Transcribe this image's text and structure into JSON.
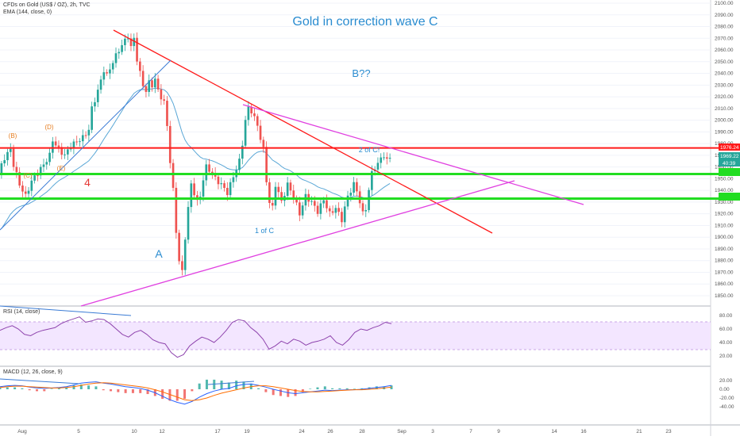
{
  "header": {
    "symbol_line": "CFDs on Gold (US$ / OZ), 2h, TVC",
    "ema_line": "EMA (144, close, 0)"
  },
  "annotations": {
    "title": "Gold in correction wave C",
    "b_label": "B??",
    "wave_4": "4",
    "wave_a": "A",
    "wave_1c": "1 of C",
    "wave_2c": "2 of C!",
    "b_small": "(B)",
    "d_small": "(D)",
    "c_small": "(C)",
    "e_small": "(E)"
  },
  "rsi": {
    "label": "RSI (14, close)"
  },
  "macd": {
    "label": "MACD (12, 26, close, 9)"
  },
  "price_badges": {
    "resistance": "1976.24",
    "last": "1969.22",
    "countdown": "40:39"
  },
  "colors": {
    "up": "#26a69a",
    "down": "#ef5350",
    "ema": "#5aa7d6",
    "red_line": "#ff1a1a",
    "green_line": "#22dd22",
    "magenta": "#e040e0",
    "blue_line": "#3a7bd5",
    "title": "#2a8cd0",
    "rsi_band": "#f3e6ff",
    "rsi_line": "#8e44ad"
  },
  "chart_data": {
    "type": "candlestick",
    "title": "Gold in correction wave C",
    "price_axis": {
      "ticks": [
        2100,
        2090,
        2080,
        2070,
        2060,
        2050,
        2040,
        2030,
        2020,
        2010,
        2000,
        1990,
        1980,
        1970,
        1960,
        1950,
        1940,
        1930,
        1920,
        1910,
        1900,
        1890,
        1880,
        1870,
        1860,
        1850
      ]
    },
    "x_axis": {
      "ticks": [
        "Aug",
        "5",
        "10",
        "12",
        "17",
        "19",
        "24",
        "26",
        "28",
        "Sep",
        "3",
        "7",
        "9",
        "14",
        "16",
        "21",
        "23"
      ]
    },
    "horizontal_levels": [
      {
        "name": "resistance",
        "value": 1976.24
      },
      {
        "name": "support_upper",
        "value": 1954
      },
      {
        "name": "support_lower",
        "value": 1933
      }
    ],
    "rsi_axis": {
      "ticks": [
        80,
        60,
        40,
        20
      ],
      "band": [
        30,
        70
      ]
    },
    "macd_axis": {
      "ticks": [
        20,
        0,
        -20,
        -40
      ]
    },
    "price_path": [
      [
        0,
        1955
      ],
      [
        2,
        1968
      ],
      [
        4,
        1975
      ],
      [
        5,
        1962
      ],
      [
        7,
        1945
      ],
      [
        9,
        1935
      ],
      [
        11,
        1948
      ],
      [
        13,
        1955
      ],
      [
        15,
        1962
      ],
      [
        17,
        1970
      ],
      [
        18,
        1983
      ],
      [
        20,
        1975
      ],
      [
        22,
        1970
      ],
      [
        24,
        1978
      ],
      [
        26,
        1982
      ],
      [
        28,
        1985
      ],
      [
        30,
        1992
      ],
      [
        31,
        2010
      ],
      [
        33,
        2025
      ],
      [
        35,
        2043
      ],
      [
        36,
        2038
      ],
      [
        38,
        2050
      ],
      [
        40,
        2060
      ],
      [
        42,
        2068
      ],
      [
        43,
        2072
      ],
      [
        44,
        2062
      ],
      [
        45,
        2070
      ],
      [
        46,
        2052
      ],
      [
        47,
        2040
      ],
      [
        48,
        2030
      ],
      [
        49,
        2025
      ],
      [
        50,
        2032
      ],
      [
        51,
        2030
      ],
      [
        52,
        2035
      ],
      [
        53,
        2025
      ],
      [
        55,
        2015
      ],
      [
        56,
        1995
      ],
      [
        57,
        1965
      ],
      [
        58,
        1940
      ],
      [
        59,
        1905
      ],
      [
        60,
        1880
      ],
      [
        61,
        1870
      ],
      [
        62,
        1900
      ],
      [
        63,
        1925
      ],
      [
        64,
        1945
      ],
      [
        65,
        1938
      ],
      [
        66,
        1930
      ],
      [
        67,
        1935
      ],
      [
        68,
        1950
      ],
      [
        69,
        1960
      ],
      [
        71,
        1955
      ],
      [
        72,
        1950
      ],
      [
        74,
        1945
      ],
      [
        76,
        1938
      ],
      [
        78,
        1952
      ],
      [
        80,
        1965
      ],
      [
        81,
        1980
      ],
      [
        82,
        2000
      ],
      [
        83,
        2010
      ],
      [
        84,
        2008
      ],
      [
        85,
        2002
      ],
      [
        86,
        1995
      ],
      [
        87,
        1985
      ],
      [
        88,
        1975
      ],
      [
        89,
        1948
      ],
      [
        90,
        1930
      ],
      [
        91,
        1925
      ],
      [
        92,
        1945
      ],
      [
        93,
        1938
      ],
      [
        94,
        1930
      ],
      [
        96,
        1945
      ],
      [
        98,
        1935
      ],
      [
        100,
        1920
      ],
      [
        102,
        1935
      ],
      [
        104,
        1930
      ],
      [
        106,
        1922
      ],
      [
        108,
        1932
      ],
      [
        110,
        1920
      ],
      [
        112,
        1925
      ],
      [
        114,
        1915
      ],
      [
        116,
        1935
      ],
      [
        118,
        1945
      ],
      [
        119,
        1940
      ],
      [
        120,
        1930
      ],
      [
        121,
        1920
      ],
      [
        122,
        1925
      ],
      [
        123,
        1940
      ],
      [
        124,
        1955
      ],
      [
        125,
        1960
      ],
      [
        126,
        1962
      ],
      [
        127,
        1968
      ],
      [
        128,
        1970
      ],
      [
        129,
        1965
      ],
      [
        130,
        1969
      ]
    ],
    "rsi_values": [
      58,
      62,
      65,
      60,
      52,
      50,
      55,
      58,
      60,
      62,
      68,
      72,
      75,
      78,
      70,
      72,
      75,
      74,
      68,
      60,
      52,
      48,
      55,
      58,
      52,
      44,
      40,
      38,
      25,
      18,
      22,
      35,
      42,
      48,
      45,
      40,
      48,
      58,
      70,
      74,
      72,
      62,
      55,
      45,
      30,
      35,
      42,
      38,
      45,
      42,
      36,
      40,
      42,
      45,
      50,
      40,
      36,
      44,
      55,
      60,
      58,
      62,
      65,
      70,
      68
    ],
    "macd_values": [
      6,
      8,
      9,
      8,
      5,
      3,
      2,
      3,
      4,
      6,
      10,
      14,
      16,
      17,
      14,
      12,
      9,
      6,
      4,
      2,
      -2,
      -8,
      -16,
      -24,
      -30,
      -34,
      -28,
      -18,
      -10,
      -4,
      0,
      2,
      8,
      11,
      12,
      9,
      5,
      0,
      -4,
      -8,
      -10,
      -8,
      -6,
      -4,
      -2,
      -3,
      -2,
      -1,
      -1,
      0,
      2,
      4,
      6,
      9
    ],
    "signal_values": [
      4,
      6,
      7,
      7,
      6,
      5,
      4,
      3,
      3,
      4,
      6,
      9,
      12,
      14,
      15,
      14,
      12,
      10,
      8,
      6,
      3,
      -1,
      -6,
      -12,
      -18,
      -24,
      -26,
      -24,
      -20,
      -14,
      -9,
      -5,
      -1,
      3,
      6,
      8,
      8,
      6,
      3,
      0,
      -3,
      -5,
      -6,
      -6,
      -5,
      -4,
      -3,
      -2,
      -1,
      -1,
      0,
      1,
      3,
      5
    ]
  }
}
